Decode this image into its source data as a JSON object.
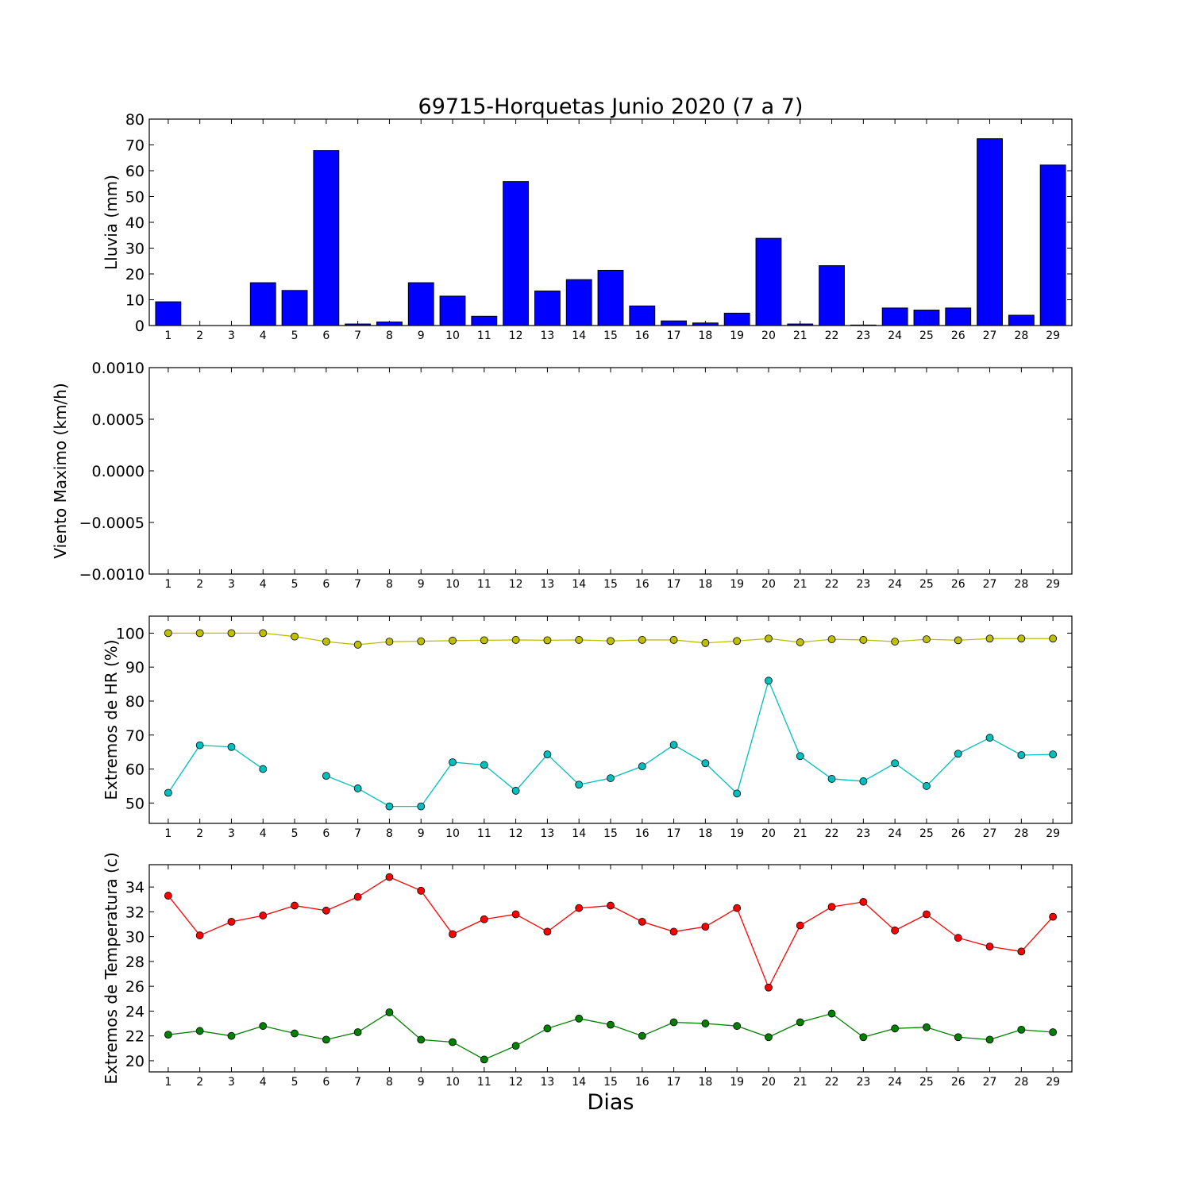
{
  "title": "69715-Horquetas Junio 2020  (7 a 7)",
  "xlabel": "Dias",
  "chart_data": [
    {
      "type": "bar",
      "ylabel": "Lluvia (mm)",
      "ylim": [
        0,
        80
      ],
      "yticks": [
        "0",
        "10",
        "20",
        "30",
        "40",
        "50",
        "60",
        "70",
        "80"
      ],
      "categories": [
        "1",
        "2",
        "3",
        "4",
        "5",
        "6",
        "7",
        "8",
        "9",
        "10",
        "11",
        "12",
        "13",
        "14",
        "15",
        "16",
        "17",
        "18",
        "19",
        "20",
        "21",
        "22",
        "23",
        "24",
        "25",
        "26",
        "27",
        "28",
        "29"
      ],
      "series": [
        {
          "color": "#0000ff",
          "values": [
            9.2,
            0,
            0,
            16.6,
            13.6,
            67.8,
            0.6,
            1.4,
            16.6,
            11.4,
            3.6,
            55.8,
            13.4,
            17.8,
            21.4,
            7.6,
            1.8,
            1.0,
            4.8,
            33.8,
            0.6,
            23.2,
            0.2,
            6.8,
            6.0,
            6.8,
            72.4,
            4.0,
            62.2
          ]
        }
      ]
    },
    {
      "type": "line",
      "ylabel": "Viento Maximo (km/h)",
      "ylim": [
        -0.001,
        0.001
      ],
      "yticks": [
        "−0.0010",
        "−0.0005",
        "0.0000",
        "0.0005",
        "0.0010"
      ],
      "categories": [
        "1",
        "2",
        "3",
        "4",
        "5",
        "6",
        "7",
        "8",
        "9",
        "10",
        "11",
        "12",
        "13",
        "14",
        "15",
        "16",
        "17",
        "18",
        "19",
        "20",
        "21",
        "22",
        "23",
        "24",
        "25",
        "26",
        "27",
        "28",
        "29"
      ],
      "series": []
    },
    {
      "type": "line",
      "ylabel": "Extremos de HR (%)",
      "ylim": [
        44,
        105
      ],
      "yticks": [
        "50",
        "60",
        "70",
        "80",
        "90",
        "100"
      ],
      "categories": [
        "1",
        "2",
        "3",
        "4",
        "5",
        "6",
        "7",
        "8",
        "9",
        "10",
        "11",
        "12",
        "13",
        "14",
        "15",
        "16",
        "17",
        "18",
        "19",
        "20",
        "21",
        "22",
        "23",
        "24",
        "25",
        "26",
        "27",
        "28",
        "29"
      ],
      "series": [
        {
          "color": "#bfbf00",
          "values": [
            100,
            100,
            100,
            100,
            99,
            97.5,
            96.6,
            97.5,
            97.6,
            97.8,
            97.9,
            98,
            97.9,
            98,
            97.7,
            98,
            98,
            97.1,
            97.7,
            98.4,
            97.3,
            98.2,
            98,
            97.5,
            98.2,
            97.9,
            98.4,
            98.4,
            98.4
          ]
        },
        {
          "color": "#00bfbf",
          "values": [
            53,
            67,
            66.5,
            60,
            null,
            58,
            54.3,
            49,
            49,
            62,
            61.2,
            53.6,
            64.3,
            55.4,
            57.3,
            60.8,
            67.1,
            61.7,
            52.8,
            86,
            63.8,
            57.1,
            56.4,
            61.7,
            55,
            64.5,
            69.2,
            64.1,
            64.3
          ]
        }
      ]
    },
    {
      "type": "line",
      "ylabel": "Extremos de Temperatura (c)",
      "ylim": [
        19.1,
        35.8
      ],
      "yticks": [
        "20",
        "22",
        "24",
        "26",
        "28",
        "30",
        "32",
        "34"
      ],
      "categories": [
        "1",
        "2",
        "3",
        "4",
        "5",
        "6",
        "7",
        "8",
        "9",
        "10",
        "11",
        "12",
        "13",
        "14",
        "15",
        "16",
        "17",
        "18",
        "19",
        "20",
        "21",
        "22",
        "23",
        "24",
        "25",
        "26",
        "27",
        "28",
        "29"
      ],
      "series": [
        {
          "color": "#ff0000",
          "values": [
            33.3,
            30.1,
            31.2,
            31.7,
            32.5,
            32.1,
            33.2,
            34.8,
            33.7,
            30.2,
            31.4,
            31.8,
            30.4,
            32.3,
            32.5,
            31.2,
            30.4,
            30.8,
            32.3,
            25.9,
            30.9,
            32.4,
            32.8,
            30.5,
            31.8,
            29.9,
            29.2,
            28.8,
            31.6
          ]
        },
        {
          "color": "#008000",
          "values": [
            22.1,
            22.4,
            22,
            22.8,
            22.2,
            21.7,
            22.3,
            23.9,
            21.7,
            21.5,
            20.1,
            21.2,
            22.6,
            23.4,
            22.9,
            22,
            23.1,
            23,
            22.8,
            21.9,
            23.1,
            23.8,
            21.9,
            22.6,
            22.7,
            21.9,
            21.7,
            22.5,
            22.3
          ]
        }
      ]
    }
  ]
}
